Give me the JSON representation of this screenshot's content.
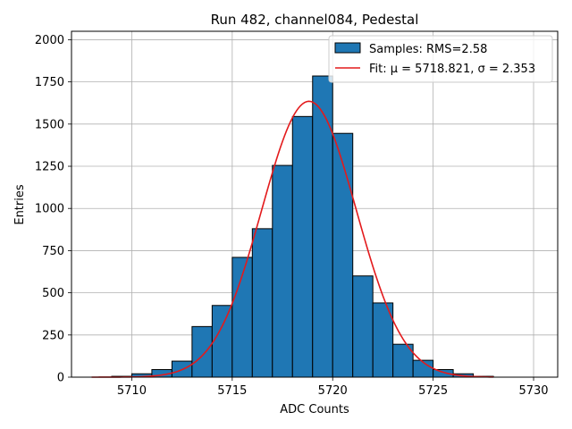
{
  "chart_data": {
    "type": "bar",
    "title": "Run 482, channel084, Pedestal",
    "xlabel": "ADC Counts",
    "ylabel": "Entries",
    "xlim": [
      5707,
      5731.2
    ],
    "ylim": [
      0,
      2050
    ],
    "xticks": [
      5710,
      5715,
      5720,
      5725,
      5730
    ],
    "yticks": [
      0,
      250,
      500,
      750,
      1000,
      1250,
      1500,
      1750,
      2000
    ],
    "grid": true,
    "legend_position": "top-right",
    "histogram": {
      "name": "Samples: RMS=2.58",
      "color": "#1f77b4",
      "edgecolor": "#000000",
      "bin_width": 1,
      "bins": [
        {
          "x": 5709,
          "value": 5
        },
        {
          "x": 5710,
          "value": 20
        },
        {
          "x": 5711,
          "value": 45
        },
        {
          "x": 5712,
          "value": 95
        },
        {
          "x": 5713,
          "value": 300
        },
        {
          "x": 5714,
          "value": 425
        },
        {
          "x": 5715,
          "value": 710
        },
        {
          "x": 5716,
          "value": 880
        },
        {
          "x": 5717,
          "value": 1255
        },
        {
          "x": 5718,
          "value": 1545
        },
        {
          "x": 5719,
          "value": 1785
        },
        {
          "x": 5720,
          "value": 1445
        },
        {
          "x": 5721,
          "value": 600
        },
        {
          "x": 5722,
          "value": 440
        },
        {
          "x": 5723,
          "value": 195
        },
        {
          "x": 5724,
          "value": 100
        },
        {
          "x": 5725,
          "value": 45
        },
        {
          "x": 5726,
          "value": 20
        },
        {
          "x": 5727,
          "value": 5
        }
      ]
    },
    "fit": {
      "name": "Fit: μ = 5718.821, σ = 2.353",
      "color": "#e31a1c",
      "mu": 5718.821,
      "sigma": 2.353,
      "peak": 1635,
      "x_range": [
        5708,
        5728
      ]
    }
  }
}
